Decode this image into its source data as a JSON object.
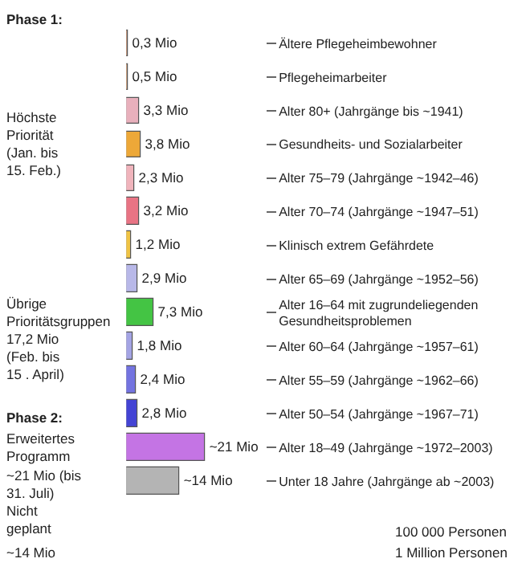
{
  "chart_data": {
    "type": "bar",
    "orientation": "horizontal",
    "categories": [
      "Ältere Pflegeheimbewohner",
      "Pflegeheimarbeiter",
      "Alter 80+ (Jahrgänge bis ~1941)",
      "Gesundheits- und Sozialarbeiter",
      "Alter 75–79 (Jahrgänge ~1942–46)",
      "Alter 70–74 (Jahrgänge ~1947–51)",
      "Klinisch extrem Gefährdete",
      "Alter 65–69 (Jahrgänge ~1952–56)",
      "Alter 16–64 mit zugrundeliegenden Gesundheitsproblemen",
      "Alter 60–64 (Jahrgänge ~1957–61)",
      "Alter 55–59 (Jahrgänge ~1962–66)",
      "Alter 50–54 (Jahrgänge ~1967–71)",
      "Alter 18–49 (Jahrgänge ~1972–2003)",
      "Unter 18 Jahre (Jahrgänge ab ~2003)"
    ],
    "values": [
      0.3,
      0.5,
      3.3,
      3.8,
      2.3,
      3.2,
      1.2,
      2.9,
      7.3,
      1.8,
      2.4,
      2.8,
      21,
      14
    ],
    "value_labels": [
      "0,3 Mio",
      "0,5 Mio",
      "3,3 Mio",
      "3,8 Mio",
      "2,3 Mio",
      "3,2 Mio",
      "1,2 Mio",
      "2,9 Mio",
      "7,3 Mio",
      "1,8 Mio",
      "2,4 Mio",
      "2,8 Mio",
      "~21 Mio",
      "~14 Mio"
    ],
    "colors": [
      "#d4906a",
      "#e0a070",
      "#e8b0bc",
      "#eda838",
      "#f0b4bc",
      "#e87484",
      "#f0c444",
      "#b8b8e8",
      "#44c444",
      "#a4a4e4",
      "#7474e0",
      "#4444d4",
      "#c474e4",
      "#b4b4b4"
    ],
    "annotations": [
      "Phase 1:",
      "Höchste Priorität (Jan. bis 15. Feb.)",
      "Übrige Prioritätsgruppen 17,2 Mio (Feb. bis 15 . April)",
      "Phase 2:",
      "Erweitertes Programm",
      "~21 Mio (bis 31. Juli)",
      "Nicht geplant",
      "~14 Mio",
      "100 000 Personen",
      "1 Million Personen"
    ],
    "legend": false
  }
}
